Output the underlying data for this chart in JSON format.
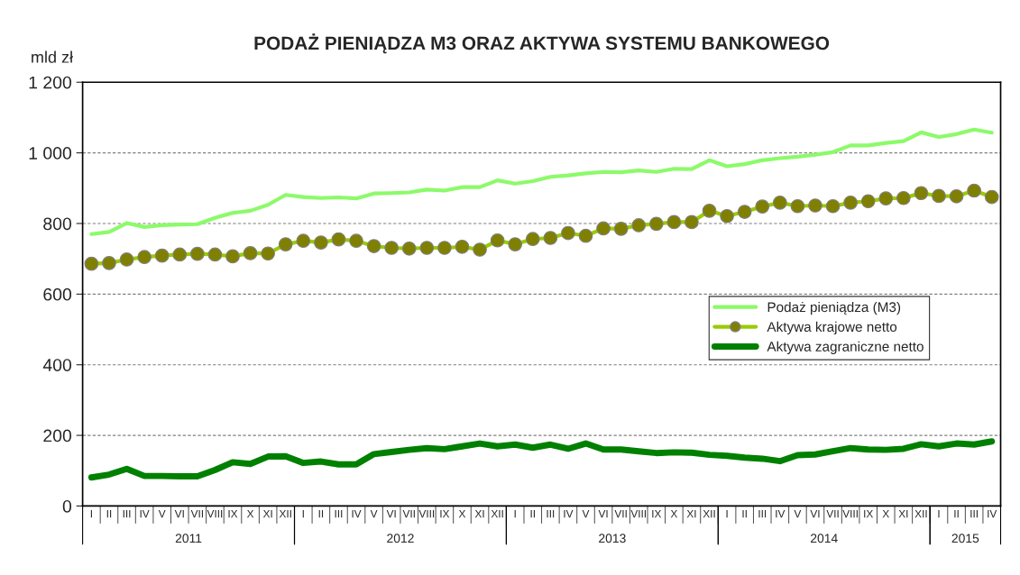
{
  "chart_data": {
    "type": "line",
    "title": "PODAŻ PIENIĄDZA M3 ORAZ AKTYWA SYSTEMU BANKOWEGO",
    "ylabel": "mld zł",
    "categories": [
      "I",
      "II",
      "III",
      "IV",
      "V",
      "VI",
      "VII",
      "VIII",
      "IX",
      "X",
      "XI",
      "XII",
      "I",
      "II",
      "III",
      "IV",
      "V",
      "VI",
      "VII",
      "VIII",
      "IX",
      "X",
      "XI",
      "XII",
      "I",
      "II",
      "III",
      "IV",
      "V",
      "VI",
      "VII",
      "VIII",
      "IX",
      "X",
      "XI",
      "XII",
      "I",
      "II",
      "III",
      "IV",
      "V",
      "VI",
      "VII",
      "VIII",
      "IX",
      "X",
      "XI",
      "XII",
      "I",
      "II",
      "III",
      "IV"
    ],
    "annotations": [
      "2011",
      "2012",
      "2013",
      "2014",
      "2015"
    ],
    "series": [
      {
        "name": "Podaż pieniądza (M3)",
        "color": "#8cfa6a",
        "marker": "none",
        "values": [
          770,
          776,
          801,
          790,
          795,
          797,
          798,
          816,
          830,
          836,
          853,
          881,
          875,
          872,
          874,
          871,
          885,
          886,
          888,
          896,
          893,
          903,
          903,
          922,
          913,
          920,
          932,
          936,
          942,
          946,
          945,
          950,
          946,
          955,
          954,
          979,
          962,
          968,
          979,
          985,
          989,
          995,
          1002,
          1021,
          1021,
          1028,
          1033,
          1058,
          1045,
          1053,
          1066,
          1057
        ]
      },
      {
        "name": "Aktywa krajowe netto",
        "color": "#99cc00",
        "marker": "circle",
        "values": [
          686,
          688,
          698,
          705,
          709,
          712,
          714,
          712,
          707,
          716,
          715,
          741,
          751,
          746,
          755,
          751,
          736,
          731,
          729,
          731,
          731,
          734,
          726,
          752,
          741,
          756,
          759,
          773,
          765,
          786,
          785,
          795,
          799,
          804,
          804,
          836,
          821,
          833,
          848,
          859,
          849,
          851,
          849,
          859,
          863,
          871,
          872,
          886,
          878,
          877,
          893,
          875
        ]
      },
      {
        "name": "Aktywa zagraniczne netto",
        "color": "#008000",
        "marker": "none",
        "values": [
          81,
          89,
          105,
          85,
          85,
          84,
          84,
          102,
          124,
          119,
          140,
          141,
          122,
          126,
          118,
          118,
          147,
          153,
          159,
          164,
          161,
          169,
          177,
          169,
          174,
          165,
          174,
          162,
          177,
          160,
          160,
          155,
          150,
          152,
          151,
          145,
          142,
          137,
          134,
          127,
          144,
          146,
          155,
          164,
          160,
          159,
          162,
          175,
          169,
          177,
          174,
          183
        ]
      }
    ],
    "ylim": [
      0,
      1200
    ],
    "yticks": [
      0,
      200,
      400,
      600,
      800,
      {
        "value": 1000,
        "label": "1 000"
      },
      {
        "value": 1200,
        "label": "1 200"
      }
    ],
    "grid": "y",
    "legend": "right"
  }
}
